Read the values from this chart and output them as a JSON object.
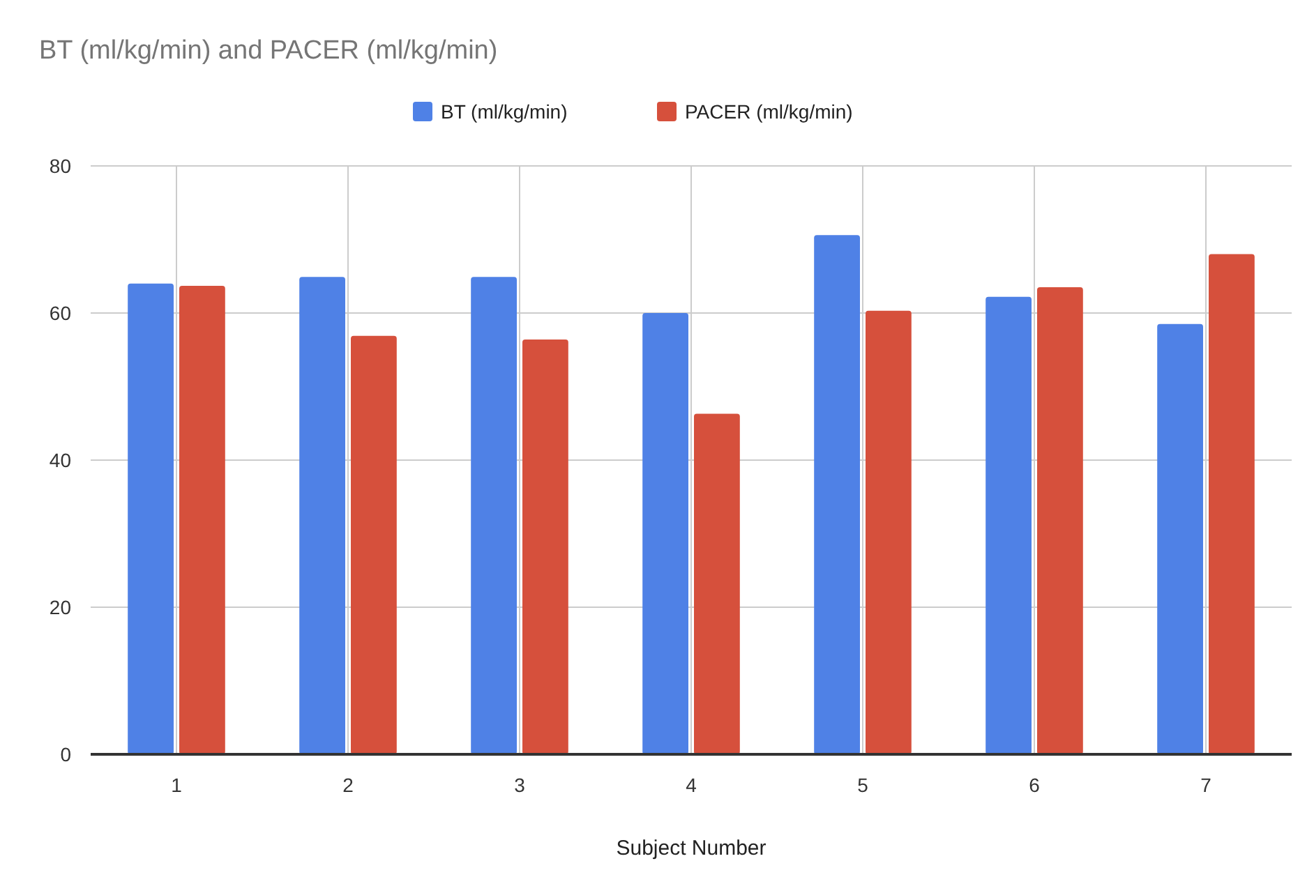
{
  "chart_data": {
    "type": "bar",
    "title": "BT (ml/kg/min) and PACER (ml/kg/min)",
    "xlabel": "Subject Number",
    "categories": [
      "1",
      "2",
      "3",
      "4",
      "5",
      "6",
      "7"
    ],
    "series": [
      {
        "name": "BT (ml/kg/min)",
        "color": "#4f81e6",
        "values": [
          64,
          64.9,
          64.9,
          60,
          70.6,
          62.2,
          58.5
        ]
      },
      {
        "name": "PACER (ml/kg/min)",
        "color": "#d6503c",
        "values": [
          63.7,
          56.9,
          56.4,
          46.3,
          60.3,
          63.5,
          68
        ]
      }
    ],
    "ylim": [
      0,
      80
    ],
    "yticks": [
      0,
      20,
      40,
      60,
      80
    ],
    "grid": true,
    "legend": "top"
  }
}
